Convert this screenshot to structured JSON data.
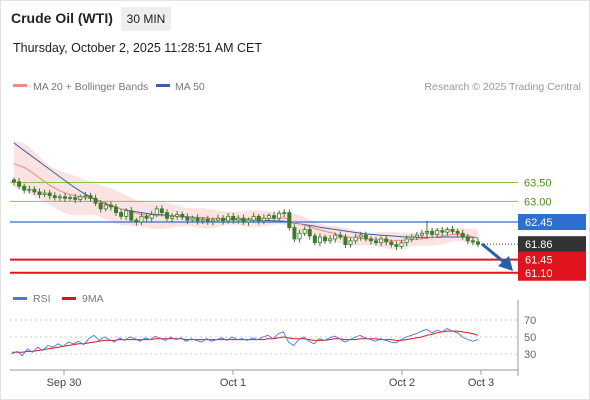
{
  "header": {
    "title": "Crude Oil (WTI)",
    "timeframe": "30 MIN",
    "datetime": "Thursday, October 2, 2025 11:28:51 AM CET"
  },
  "legend": {
    "ma20_label": "MA 20 + Bollinger Bands",
    "ma50_label": "MA 50",
    "credit": "Research © 2025 Trading Central",
    "rsi_label": "RSI",
    "rsi_ma_label": "9MA"
  },
  "colors": {
    "ma20": "#f08c80",
    "bollinger_fill": "#fbdada",
    "ma50": "#3a5fa8",
    "candle": "#3c7a2e",
    "green_level": "#8cc04a",
    "blue_level": "#2f6fd0",
    "red_level": "#e0141e",
    "last_price_bg": "#333333",
    "arrow": "#2560a8",
    "rsi": "#4a78d8",
    "rsi_ma": "#e0141e"
  },
  "chart_data": [
    {
      "type": "candlestick",
      "x_ticks": [
        "Sep 30",
        "Oct 1",
        "Oct 2",
        "Oct 3"
      ],
      "price_levels": [
        {
          "value": 63.5,
          "label": "63.50",
          "kind": "resistance"
        },
        {
          "value": 63.0,
          "label": "63.00",
          "kind": "resistance"
        },
        {
          "value": 62.45,
          "label": "62.45",
          "kind": "pivot"
        },
        {
          "value": 61.86,
          "label": "61.86",
          "kind": "last"
        },
        {
          "value": 61.45,
          "label": "61.45",
          "kind": "target"
        },
        {
          "value": 61.1,
          "label": "61.10",
          "kind": "target"
        }
      ],
      "ylim": [
        60.9,
        64.3
      ],
      "close_series": [
        63.52,
        63.4,
        63.3,
        63.32,
        63.25,
        63.18,
        63.22,
        63.15,
        63.1,
        63.12,
        63.08,
        63.1,
        63.05,
        63.12,
        63.15,
        63.08,
        62.95,
        62.8,
        62.9,
        62.85,
        62.7,
        62.6,
        62.75,
        62.5,
        62.45,
        62.6,
        62.55,
        62.65,
        62.8,
        62.7,
        62.55,
        62.6,
        62.65,
        62.58,
        62.5,
        62.55,
        62.48,
        62.52,
        62.46,
        62.5,
        62.55,
        62.48,
        62.6,
        62.5,
        62.55,
        62.45,
        62.5,
        62.6,
        62.48,
        62.55,
        62.62,
        62.55,
        62.68,
        62.7,
        62.3,
        62.0,
        62.15,
        62.25,
        62.08,
        61.9,
        62.05,
        61.95,
        62.0,
        62.1,
        62.05,
        61.85,
        61.95,
        62.05,
        62.1,
        62.0,
        61.95,
        61.9,
        62.0,
        61.92,
        61.85,
        61.8,
        61.9,
        62.0,
        62.05,
        62.1,
        62.15,
        62.2,
        62.12,
        62.22,
        62.18,
        62.25,
        62.2,
        62.15,
        62.05,
        61.95,
        61.92,
        61.86
      ],
      "ma20": [
        64.0,
        63.95,
        63.9,
        63.82,
        63.72,
        63.62,
        63.52,
        63.42,
        63.35,
        63.28,
        63.22,
        63.18,
        63.15,
        63.12,
        63.1,
        63.08,
        63.05,
        63.0,
        62.95,
        62.9,
        62.85,
        62.8,
        62.76,
        62.72,
        62.68,
        62.65,
        62.63,
        62.62,
        62.62,
        62.62,
        62.62,
        62.61,
        62.6,
        62.59,
        62.58,
        62.57,
        62.56,
        62.55,
        62.54,
        62.54,
        62.54,
        62.54,
        62.55,
        62.55,
        62.55,
        62.54,
        62.54,
        62.54,
        62.54,
        62.54,
        62.55,
        62.55,
        62.56,
        62.56,
        62.5,
        62.44,
        62.4,
        62.36,
        62.32,
        62.28,
        62.24,
        62.2,
        62.17,
        62.14,
        62.1,
        62.06,
        62.04,
        62.02,
        62.01,
        62.0,
        62.0,
        61.99,
        61.98,
        61.97,
        61.96,
        61.96,
        61.96,
        61.97,
        61.98,
        61.99,
        62.0,
        62.02,
        62.04,
        62.06,
        62.08,
        62.1,
        62.12,
        62.12,
        62.11,
        62.09,
        62.06,
        62.03
      ],
      "ma50": [
        64.55,
        64.45,
        64.35,
        64.25,
        64.15,
        64.05,
        63.95,
        63.85,
        63.75,
        63.65,
        63.55,
        63.45,
        63.36,
        63.27,
        63.19,
        63.12,
        63.05,
        62.99,
        62.93,
        62.88,
        62.84,
        62.8,
        62.77,
        62.74,
        62.72,
        62.7,
        62.68,
        62.66,
        62.65,
        62.64,
        62.63,
        62.62,
        62.61,
        62.6,
        62.59,
        62.58,
        62.57,
        62.56,
        62.55,
        62.54,
        62.53,
        62.53,
        62.52,
        62.52,
        62.51,
        62.51,
        62.5,
        62.5,
        62.5,
        62.49,
        62.49,
        62.48,
        62.48,
        62.47,
        62.45,
        62.42,
        62.4,
        62.38,
        62.36,
        62.34,
        62.31,
        62.29,
        62.27,
        62.25,
        62.23,
        62.21,
        62.19,
        62.17,
        62.15,
        62.13,
        62.12,
        62.11,
        62.1,
        62.09,
        62.08,
        62.07,
        62.06,
        62.05,
        62.05,
        62.04,
        62.04,
        62.04,
        62.04,
        62.04,
        62.05,
        62.05,
        62.05,
        62.05,
        62.05,
        62.05,
        62.04,
        62.03
      ]
    },
    {
      "type": "line",
      "title": "RSI",
      "y_ticks": [
        70,
        50,
        30
      ],
      "series_names": [
        "RSI",
        "9MA"
      ],
      "rsi": [
        30,
        33,
        28,
        36,
        32,
        38,
        34,
        40,
        38,
        42,
        39,
        44,
        42,
        45,
        41,
        48,
        52,
        46,
        50,
        47,
        44,
        49,
        46,
        50,
        48,
        45,
        49,
        47,
        51,
        48,
        46,
        50,
        47,
        49,
        45,
        48,
        46,
        44,
        48,
        45,
        47,
        49,
        46,
        50,
        47,
        48,
        46,
        49,
        47,
        50,
        52,
        48,
        54,
        56,
        44,
        40,
        47,
        50,
        45,
        42,
        48,
        46,
        49,
        51,
        48,
        44,
        47,
        50,
        52,
        49,
        47,
        45,
        48,
        46,
        44,
        43,
        47,
        50,
        52,
        54,
        57,
        59,
        55,
        58,
        56,
        60,
        57,
        55,
        50,
        47,
        45,
        47
      ],
      "rsi_ma": [
        32,
        32,
        32,
        33,
        33,
        34,
        35,
        36,
        37,
        38,
        39,
        40,
        41,
        42,
        42,
        43,
        44,
        45,
        46,
        46,
        46,
        47,
        47,
        47,
        47,
        47,
        47,
        47,
        48,
        48,
        48,
        48,
        48,
        48,
        47,
        47,
        47,
        47,
        47,
        47,
        47,
        47,
        47,
        47,
        47,
        47,
        47,
        47,
        47,
        47,
        48,
        48,
        49,
        50,
        49,
        48,
        48,
        48,
        47,
        46,
        46,
        46,
        47,
        48,
        48,
        47,
        47,
        47,
        48,
        48,
        48,
        48,
        47,
        47,
        47,
        46,
        46,
        47,
        48,
        49,
        50,
        52,
        53,
        55,
        56,
        57,
        57,
        57,
        56,
        55,
        54,
        52
      ]
    }
  ]
}
